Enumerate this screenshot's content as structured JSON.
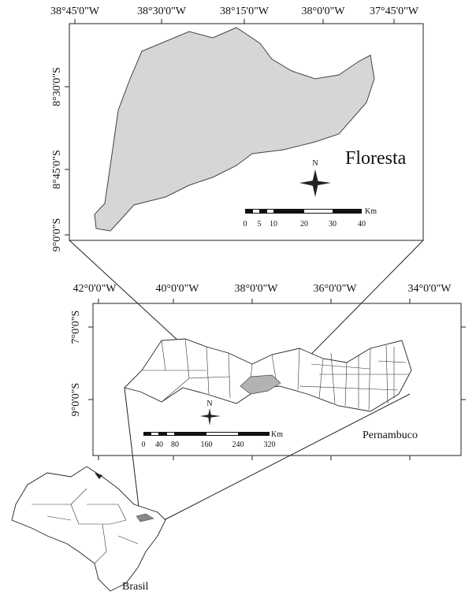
{
  "top_map": {
    "x_labels": [
      "38°45'0\"W",
      "38°30'0\"W",
      "38°15'0\"W",
      "38°0'0\"W",
      "37°45'0\"W"
    ],
    "y_labels": [
      "8°30'0\"S",
      "8°45'0\"S",
      "9°0'0\"S"
    ],
    "place": "Floresta",
    "north": "N",
    "scale_labels": [
      "0",
      "5",
      "10",
      "20",
      "30",
      "40"
    ],
    "scale_unit": "Km"
  },
  "middle_map": {
    "x_labels": [
      "42°0'0\"W",
      "40°0'0\"W",
      "38°0'0\"W",
      "36°0'0\"W",
      "34°0'0\"W"
    ],
    "y_labels": [
      "7°0'0\"S",
      "9°0'0\"S"
    ],
    "place": "Pernambuco",
    "north": "N",
    "scale_labels": [
      "0",
      "40",
      "80",
      "160",
      "240",
      "320"
    ],
    "scale_unit": "Km"
  },
  "bottom_map": {
    "place": "Brasil"
  }
}
